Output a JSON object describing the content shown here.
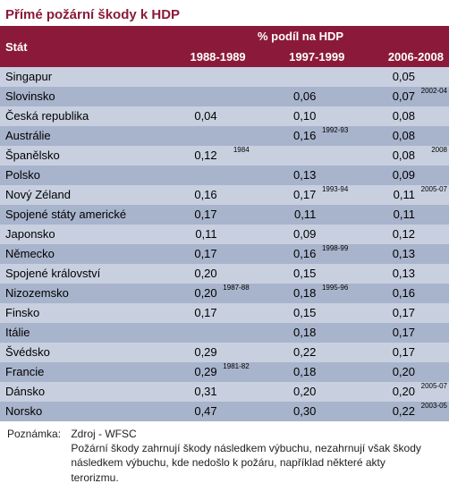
{
  "title": "Přímé požární škody k HDP",
  "colors": {
    "header_bg": "#8b1a3a",
    "header_fg": "#ffffff",
    "row_light": "#c8d0e0",
    "row_dark": "#a8b4cc"
  },
  "header": {
    "state": "Stát",
    "group": "% podíl na HDP",
    "periods": [
      "1988-1989",
      "1997-1999",
      "2006-2008"
    ]
  },
  "rows": [
    {
      "state": "Singapur",
      "vals": [
        "",
        "",
        "0,05"
      ],
      "sups": [
        "",
        "",
        ""
      ]
    },
    {
      "state": "Slovinsko",
      "vals": [
        "",
        "0,06",
        "0,07"
      ],
      "sups": [
        "",
        "",
        "2002-04"
      ]
    },
    {
      "state": "Česká republika",
      "vals": [
        "0,04",
        "0,10",
        "0,08"
      ],
      "sups": [
        "",
        "",
        ""
      ]
    },
    {
      "state": "Austrálie",
      "vals": [
        "",
        "0,16",
        "0,08"
      ],
      "sups": [
        "",
        "1992-93",
        ""
      ]
    },
    {
      "state": "Španělsko",
      "vals": [
        "0,12",
        "",
        "0,08"
      ],
      "sups": [
        "1984",
        "",
        "2008"
      ]
    },
    {
      "state": "Polsko",
      "vals": [
        "",
        "0,13",
        "0,09"
      ],
      "sups": [
        "",
        "",
        ""
      ]
    },
    {
      "state": "Nový Zéland",
      "vals": [
        "0,16",
        "0,17",
        "0,11"
      ],
      "sups": [
        "",
        "1993-94",
        "2005-07"
      ]
    },
    {
      "state": "Spojené státy americké",
      "vals": [
        "0,17",
        "0,11",
        "0,11"
      ],
      "sups": [
        "",
        "",
        ""
      ]
    },
    {
      "state": "Japonsko",
      "vals": [
        "0,11",
        "0,09",
        "0,12"
      ],
      "sups": [
        "",
        "",
        ""
      ]
    },
    {
      "state": "Německo",
      "vals": [
        "0,17",
        "0,16",
        "0,13"
      ],
      "sups": [
        "",
        "1998-99",
        ""
      ]
    },
    {
      "state": "Spojené království",
      "vals": [
        "0,20",
        "0,15",
        "0,13"
      ],
      "sups": [
        "",
        "",
        ""
      ]
    },
    {
      "state": "Nizozemsko",
      "vals": [
        "0,20",
        "0,18",
        "0,16"
      ],
      "sups": [
        "1987-88",
        "1995-96",
        ""
      ]
    },
    {
      "state": "Finsko",
      "vals": [
        "0,17",
        "0,15",
        "0,17"
      ],
      "sups": [
        "",
        "",
        ""
      ]
    },
    {
      "state": "Itálie",
      "vals": [
        "",
        "0,18",
        "0,17"
      ],
      "sups": [
        "",
        "",
        ""
      ]
    },
    {
      "state": "Švédsko",
      "vals": [
        "0,29",
        "0,22",
        "0,17"
      ],
      "sups": [
        "",
        "",
        ""
      ]
    },
    {
      "state": "Francie",
      "vals": [
        "0,29",
        "0,18",
        "0,20"
      ],
      "sups": [
        "1981-82",
        "",
        ""
      ]
    },
    {
      "state": "Dánsko",
      "vals": [
        "0,31",
        "0,20",
        "0,20"
      ],
      "sups": [
        "",
        "",
        "2005-07"
      ]
    },
    {
      "state": "Norsko",
      "vals": [
        "0,47",
        "0,30",
        "0,22"
      ],
      "sups": [
        "",
        "",
        "2003-05"
      ]
    }
  ],
  "footnote": {
    "label": "Poznámka:",
    "source": "Zdroj - WFSC",
    "text": "Požární škody zahrnují škody následkem výbuchu, nezahrnují však škody následkem výbuchu, kde nedošlo k požáru, například některé akty terorizmu."
  }
}
